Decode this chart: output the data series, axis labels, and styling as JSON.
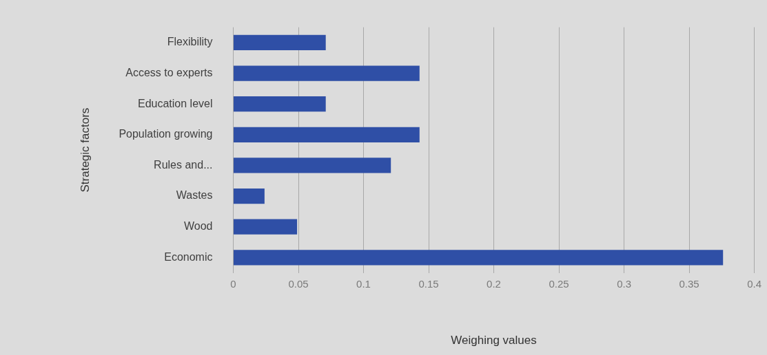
{
  "chart_data": {
    "type": "bar",
    "orientation": "horizontal",
    "xlabel": "Weighing values",
    "ylabel": "Strategic factors",
    "categories": [
      "Flexibility",
      "Access to experts",
      "Education level",
      "Population growing",
      "Rules and...",
      "Wastes",
      "Wood",
      "Economic"
    ],
    "values": [
      0.071,
      0.143,
      0.071,
      0.143,
      0.121,
      0.024,
      0.049,
      0.376
    ],
    "color": "#2f4fa6",
    "xlim": [
      0,
      0.4
    ],
    "xticks": [
      0,
      0.05,
      0.1,
      0.15,
      0.2,
      0.25,
      0.3,
      0.35,
      0.4
    ],
    "grid": "x",
    "legend": false
  }
}
